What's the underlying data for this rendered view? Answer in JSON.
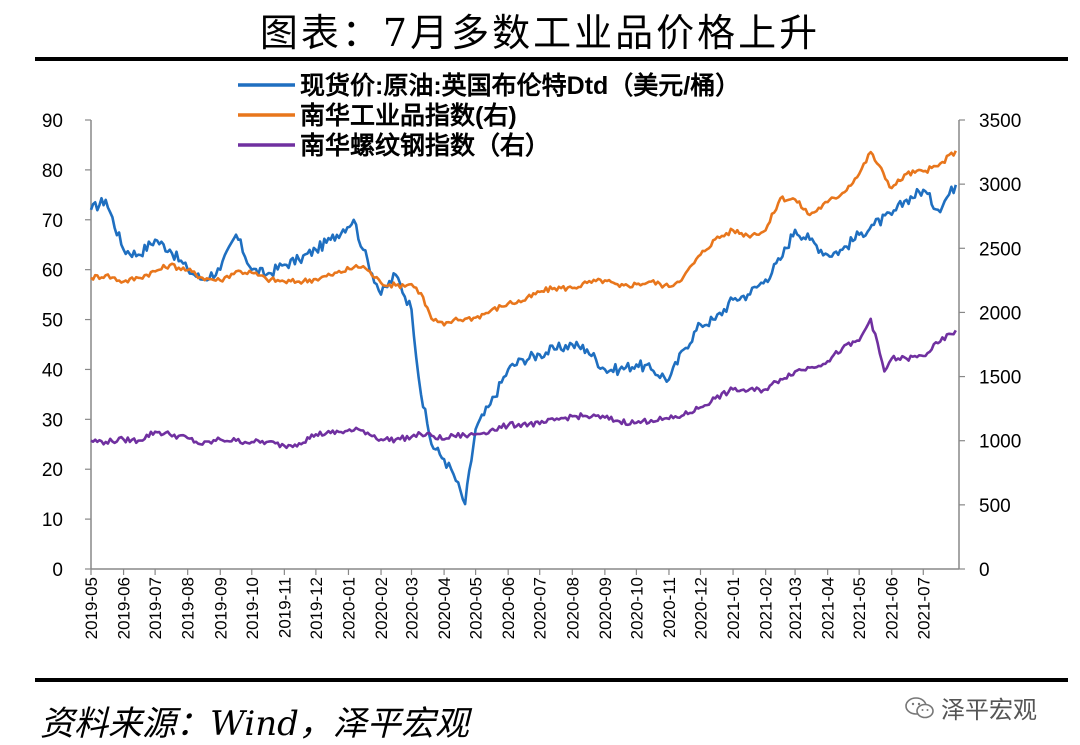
{
  "title": "图表：7月多数工业品价格上升",
  "source": "资料来源：Wind，泽平宏观",
  "watermark": "泽平宏观",
  "chart_data": {
    "type": "line",
    "x_tick_labels": [
      "2019-05",
      "2019-06",
      "2019-07",
      "2019-08",
      "2019-09",
      "2019-10",
      "2019-11",
      "2019-12",
      "2020-01",
      "2020-02",
      "2020-03",
      "2020-04",
      "2020-05",
      "2020-06",
      "2020-07",
      "2020-08",
      "2020-09",
      "2020-10",
      "2020-11",
      "2020-12",
      "2021-01",
      "2021-02",
      "2021-03",
      "2021-04",
      "2021-05",
      "2021-06",
      "2021-07"
    ],
    "left_axis": {
      "ticks": [
        "0",
        "10",
        "20",
        "30",
        "40",
        "50",
        "60",
        "70",
        "80",
        "90"
      ],
      "ylim": [
        0,
        90
      ]
    },
    "right_axis": {
      "ticks": [
        "0",
        "500",
        "1000",
        "1500",
        "2000",
        "2500",
        "3000",
        "3500"
      ],
      "ylim": [
        0,
        3500
      ]
    },
    "legend": {
      "placement": "top-center"
    },
    "series": [
      {
        "name": "现货价:原油:英国布伦特Dtd（美元/桶）",
        "axis": "left",
        "color": "#1f6fc0",
        "x": [
          "2019-05-01",
          "2019-05-15",
          "2019-06-01",
          "2019-06-15",
          "2019-07-01",
          "2019-07-15",
          "2019-08-01",
          "2019-08-15",
          "2019-09-01",
          "2019-09-16",
          "2019-10-01",
          "2019-10-15",
          "2019-11-01",
          "2019-11-15",
          "2019-12-01",
          "2019-12-15",
          "2020-01-06",
          "2020-01-15",
          "2020-02-01",
          "2020-02-15",
          "2020-03-01",
          "2020-03-10",
          "2020-03-20",
          "2020-04-01",
          "2020-04-10",
          "2020-04-21",
          "2020-05-01",
          "2020-05-15",
          "2020-06-01",
          "2020-06-15",
          "2020-07-01",
          "2020-07-15",
          "2020-08-01",
          "2020-08-15",
          "2020-09-01",
          "2020-09-15",
          "2020-10-01",
          "2020-10-15",
          "2020-11-01",
          "2020-11-15",
          "2020-12-01",
          "2020-12-15",
          "2021-01-01",
          "2021-01-15",
          "2021-02-01",
          "2021-02-15",
          "2021-03-01",
          "2021-03-15",
          "2021-04-01",
          "2021-04-15",
          "2021-05-01",
          "2021-05-15",
          "2021-06-01",
          "2021-06-15",
          "2021-07-01",
          "2021-07-15",
          "2021-08-01"
        ],
        "y": [
          72,
          74,
          64,
          63,
          66,
          64,
          60,
          58,
          60,
          67,
          60,
          59,
          61,
          62,
          64,
          66,
          70,
          64,
          55,
          59,
          52,
          35,
          25,
          22,
          19,
          13,
          28,
          33,
          40,
          42,
          43,
          44,
          45,
          44,
          40,
          40,
          41,
          40,
          38,
          44,
          49,
          50,
          54,
          55,
          58,
          62,
          68,
          66,
          63,
          64,
          67,
          69,
          71,
          74,
          76,
          72,
          77
        ]
      },
      {
        "name": "南华工业品指数(右)",
        "axis": "right",
        "color": "#e8761c",
        "x": [
          "2019-05-01",
          "2019-05-15",
          "2019-06-01",
          "2019-06-15",
          "2019-07-01",
          "2019-07-15",
          "2019-08-01",
          "2019-08-15",
          "2019-09-01",
          "2019-09-16",
          "2019-10-01",
          "2019-10-15",
          "2019-11-01",
          "2019-11-15",
          "2019-12-01",
          "2019-12-15",
          "2020-01-06",
          "2020-01-15",
          "2020-02-01",
          "2020-02-15",
          "2020-03-01",
          "2020-03-10",
          "2020-03-20",
          "2020-04-01",
          "2020-04-10",
          "2020-04-21",
          "2020-05-01",
          "2020-05-15",
          "2020-06-01",
          "2020-06-15",
          "2020-07-01",
          "2020-07-15",
          "2020-08-01",
          "2020-08-15",
          "2020-09-01",
          "2020-09-15",
          "2020-10-01",
          "2020-10-15",
          "2020-11-01",
          "2020-11-15",
          "2020-12-01",
          "2020-12-15",
          "2021-01-01",
          "2021-01-15",
          "2021-02-01",
          "2021-02-15",
          "2021-03-01",
          "2021-03-15",
          "2021-04-01",
          "2021-04-15",
          "2021-05-01",
          "2021-05-12",
          "2021-06-01",
          "2021-06-15",
          "2021-07-01",
          "2021-07-15",
          "2021-08-01"
        ],
        "y": [
          2270,
          2290,
          2240,
          2270,
          2320,
          2370,
          2330,
          2270,
          2250,
          2320,
          2310,
          2260,
          2240,
          2240,
          2260,
          2290,
          2350,
          2360,
          2230,
          2210,
          2220,
          2150,
          1950,
          1900,
          1940,
          1950,
          1960,
          2010,
          2070,
          2090,
          2160,
          2190,
          2190,
          2230,
          2250,
          2200,
          2220,
          2240,
          2200,
          2280,
          2450,
          2570,
          2640,
          2600,
          2640,
          2890,
          2880,
          2760,
          2860,
          2930,
          3080,
          3250,
          2970,
          3080,
          3100,
          3140,
          3260
        ]
      },
      {
        "name": "南华螺纹钢指数（右）",
        "axis": "right",
        "color": "#7030a0",
        "x": [
          "2019-05-01",
          "2019-05-15",
          "2019-06-01",
          "2019-06-15",
          "2019-07-01",
          "2019-07-15",
          "2019-08-01",
          "2019-08-15",
          "2019-09-01",
          "2019-09-16",
          "2019-10-01",
          "2019-10-15",
          "2019-11-01",
          "2019-11-15",
          "2019-12-01",
          "2019-12-15",
          "2020-01-06",
          "2020-01-15",
          "2020-02-01",
          "2020-02-15",
          "2020-03-01",
          "2020-03-10",
          "2020-03-20",
          "2020-04-01",
          "2020-04-10",
          "2020-04-21",
          "2020-05-01",
          "2020-05-15",
          "2020-06-01",
          "2020-06-15",
          "2020-07-01",
          "2020-07-15",
          "2020-08-01",
          "2020-08-15",
          "2020-09-01",
          "2020-09-15",
          "2020-10-01",
          "2020-10-15",
          "2020-11-01",
          "2020-11-15",
          "2020-12-01",
          "2020-12-15",
          "2021-01-01",
          "2021-01-15",
          "2021-02-01",
          "2021-02-15",
          "2021-03-01",
          "2021-03-15",
          "2021-04-01",
          "2021-04-15",
          "2021-05-01",
          "2021-05-12",
          "2021-05-25",
          "2021-06-01",
          "2021-06-15",
          "2021-07-01",
          "2021-07-15",
          "2021-08-01"
        ],
        "y": [
          1000,
          990,
          1010,
          1000,
          1070,
          1050,
          1020,
          970,
          1010,
          1000,
          990,
          990,
          960,
          980,
          1050,
          1060,
          1080,
          1080,
          1010,
          1010,
          1030,
          1050,
          1040,
          1010,
          1040,
          1040,
          1050,
          1080,
          1120,
          1130,
          1130,
          1160,
          1190,
          1190,
          1180,
          1150,
          1140,
          1160,
          1170,
          1200,
          1260,
          1330,
          1400,
          1390,
          1400,
          1480,
          1540,
          1570,
          1620,
          1720,
          1780,
          1950,
          1540,
          1640,
          1640,
          1660,
          1760,
          1860
        ]
      }
    ]
  }
}
